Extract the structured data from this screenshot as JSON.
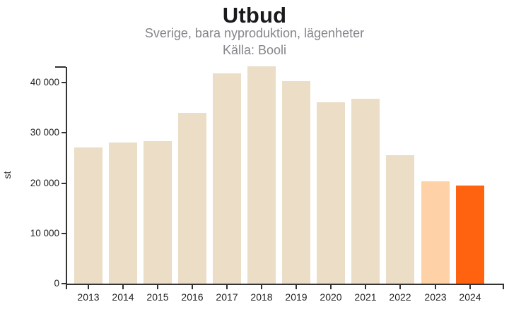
{
  "chart_data": {
    "type": "bar",
    "title": "Utbud",
    "subtitle": "Sverige, bara nyproduktion, lägenheter",
    "source": "Källa: Booli",
    "ylabel": "st",
    "xlabel": "",
    "categories": [
      "2013",
      "2014",
      "2015",
      "2016",
      "2017",
      "2018",
      "2019",
      "2020",
      "2021",
      "2022",
      "2023",
      "2024"
    ],
    "values": [
      27100,
      28000,
      28400,
      34000,
      41800,
      43200,
      40300,
      36000,
      36800,
      25600,
      20400,
      19500
    ],
    "yticks": [
      {
        "value": 0,
        "label": "0"
      },
      {
        "value": 10000,
        "label": "10 000"
      },
      {
        "value": 20000,
        "label": "20 000"
      },
      {
        "value": 30000,
        "label": "30 000"
      },
      {
        "value": 40000,
        "label": "40 000"
      }
    ],
    "ylim": [
      0,
      43200
    ],
    "grid": false,
    "legend": false,
    "colors": {
      "bar_default": "#EBDDC6",
      "bar_2023": "#FFD1A6",
      "bar_2024": "#FF6310",
      "axis": "#333333",
      "title": "#1a1a1c",
      "subtitle": "#85858b",
      "tick_label": "#222222"
    }
  }
}
